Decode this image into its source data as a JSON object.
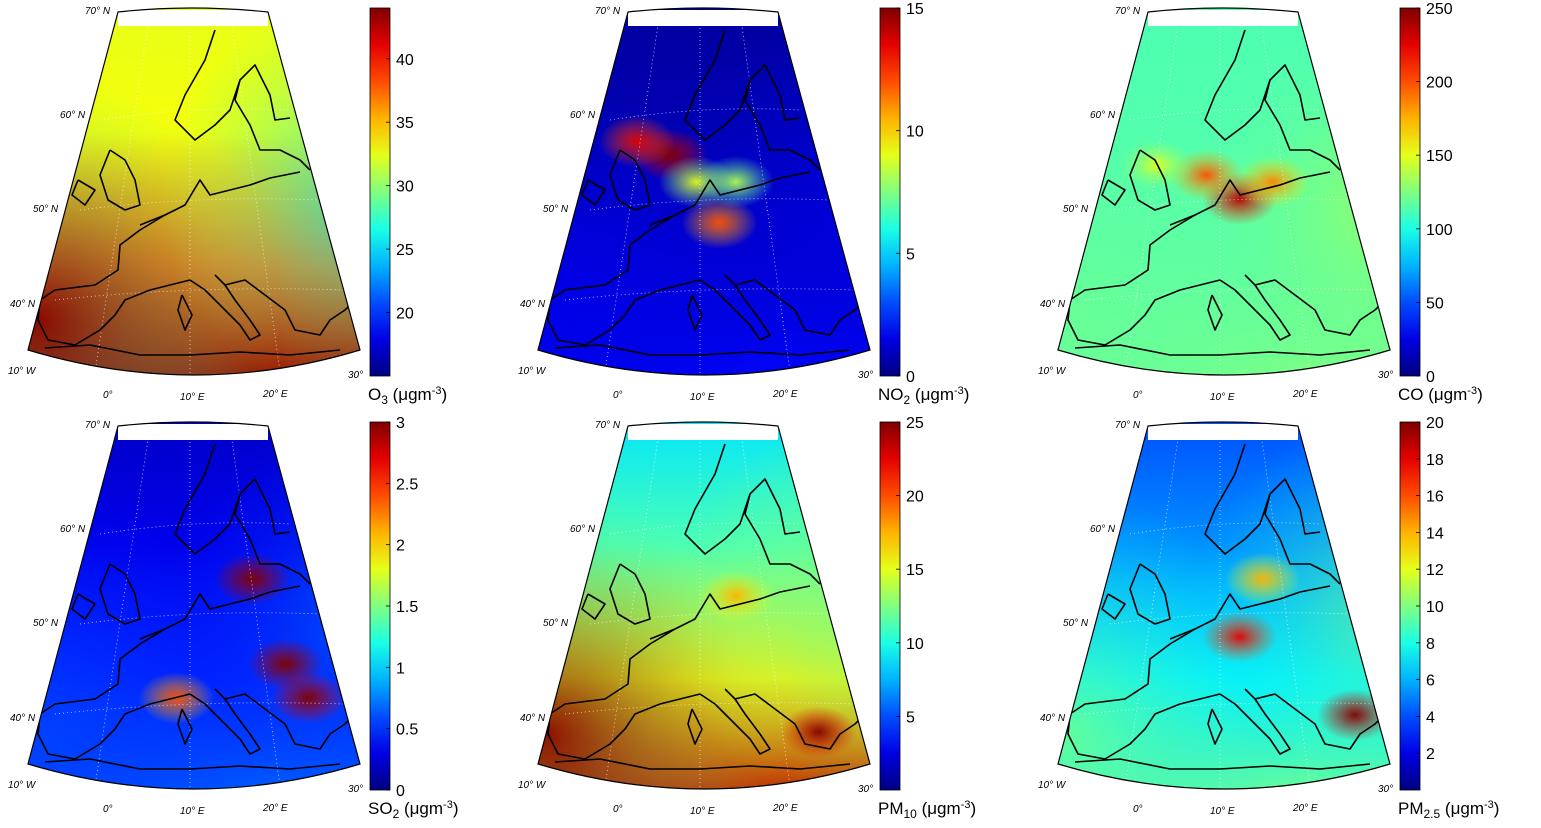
{
  "figure": {
    "panels": [
      {
        "pollutant": "O3",
        "colorbar_label": "O",
        "colorbar_sub": "3",
        "colorbar_unit": " (μgm",
        "colorbar_exp": "-3",
        "colorbar_close": ")",
        "range": [
          15,
          44
        ],
        "ticks": [
          "20",
          "25",
          "30",
          "35",
          "40"
        ],
        "field": {
          "base": 0.45,
          "sw": 0.35,
          "south": 0.6,
          "north": 0.15,
          "east": -0.1
        },
        "hotspots": []
      },
      {
        "pollutant": "NO2",
        "colorbar_label": "NO",
        "colorbar_sub": "2",
        "colorbar_unit": " (μgm",
        "colorbar_exp": "-3",
        "colorbar_close": ")",
        "range": [
          0,
          15
        ],
        "ticks": [
          "0",
          "5",
          "10",
          "15"
        ],
        "field": {
          "base": 0.08,
          "sw": 0.0,
          "south": 0.05,
          "north": -0.05,
          "east": 0.02
        },
        "hotspots": [
          [
            0.4,
            0.42,
            0.9
          ],
          [
            0.3,
            0.38,
            0.8
          ],
          [
            0.55,
            0.62,
            0.7
          ],
          [
            0.48,
            0.5,
            0.5
          ],
          [
            0.6,
            0.5,
            0.45
          ]
        ]
      },
      {
        "pollutant": "CO",
        "colorbar_label": "CO (μgm",
        "colorbar_sub": "",
        "colorbar_unit": "",
        "colorbar_exp": "-3",
        "colorbar_close": ")",
        "range": [
          0,
          250
        ],
        "ticks": [
          "0",
          "50",
          "100",
          "150",
          "200",
          "250"
        ],
        "field": {
          "base": 0.45,
          "sw": 0.0,
          "south": 0.05,
          "north": 0.0,
          "east": 0.1
        },
        "hotspots": [
          [
            0.55,
            0.55,
            0.85
          ],
          [
            0.45,
            0.48,
            0.7
          ],
          [
            0.65,
            0.5,
            0.65
          ],
          [
            0.3,
            0.45,
            0.5
          ]
        ]
      },
      {
        "pollutant": "SO2",
        "colorbar_label": "SO",
        "colorbar_sub": "2",
        "colorbar_unit": " (μgm",
        "colorbar_exp": "-3",
        "colorbar_close": ")",
        "range": [
          0,
          3
        ],
        "ticks": [
          "0",
          "0.5",
          "1",
          "1.5",
          "2",
          "2.5",
          "3"
        ],
        "field": {
          "base": 0.15,
          "sw": 0.0,
          "south": 0.08,
          "north": -0.08,
          "east": 0.08
        },
        "hotspots": [
          [
            0.68,
            0.45,
            0.95
          ],
          [
            0.78,
            0.7,
            0.95
          ],
          [
            0.85,
            0.8,
            0.9
          ],
          [
            0.45,
            0.8,
            0.7
          ]
        ]
      },
      {
        "pollutant": "PM10",
        "colorbar_label": "PM",
        "colorbar_sub": "10",
        "colorbar_unit": " (μgm",
        "colorbar_exp": "-3",
        "colorbar_close": ")",
        "range": [
          0,
          25
        ],
        "ticks": [
          "5",
          "10",
          "15",
          "20",
          "25"
        ],
        "field": {
          "base": 0.5,
          "sw": 0.3,
          "south": 0.45,
          "north": -0.15,
          "east": 0.0
        },
        "hotspots": [
          [
            0.85,
            0.9,
            0.9
          ],
          [
            0.6,
            0.5,
            0.6
          ]
        ]
      },
      {
        "pollutant": "PM2.5",
        "colorbar_label": "PM",
        "colorbar_sub": "2.5",
        "colorbar_unit": " (μgm",
        "colorbar_exp": "-3",
        "colorbar_close": ")",
        "range": [
          0,
          20
        ],
        "ticks": [
          "2",
          "4",
          "6",
          "8",
          "10",
          "12",
          "14",
          "16",
          "18",
          "20"
        ],
        "field": {
          "base": 0.35,
          "sw": 0.05,
          "south": 0.15,
          "north": -0.15,
          "east": 0.15
        },
        "hotspots": [
          [
            0.55,
            0.62,
            0.8
          ],
          [
            0.9,
            0.85,
            0.9
          ],
          [
            0.62,
            0.45,
            0.6
          ]
        ]
      }
    ],
    "map_labels": {
      "lat": [
        "70",
        "60",
        "50",
        "40"
      ],
      "lat_suffix": "N",
      "lon": [
        "10",
        "0",
        "10",
        "20",
        "30"
      ],
      "lon_suffix": [
        "W",
        "",
        "E",
        "E",
        ""
      ],
      "degree": "°"
    },
    "colormap": "jet"
  }
}
